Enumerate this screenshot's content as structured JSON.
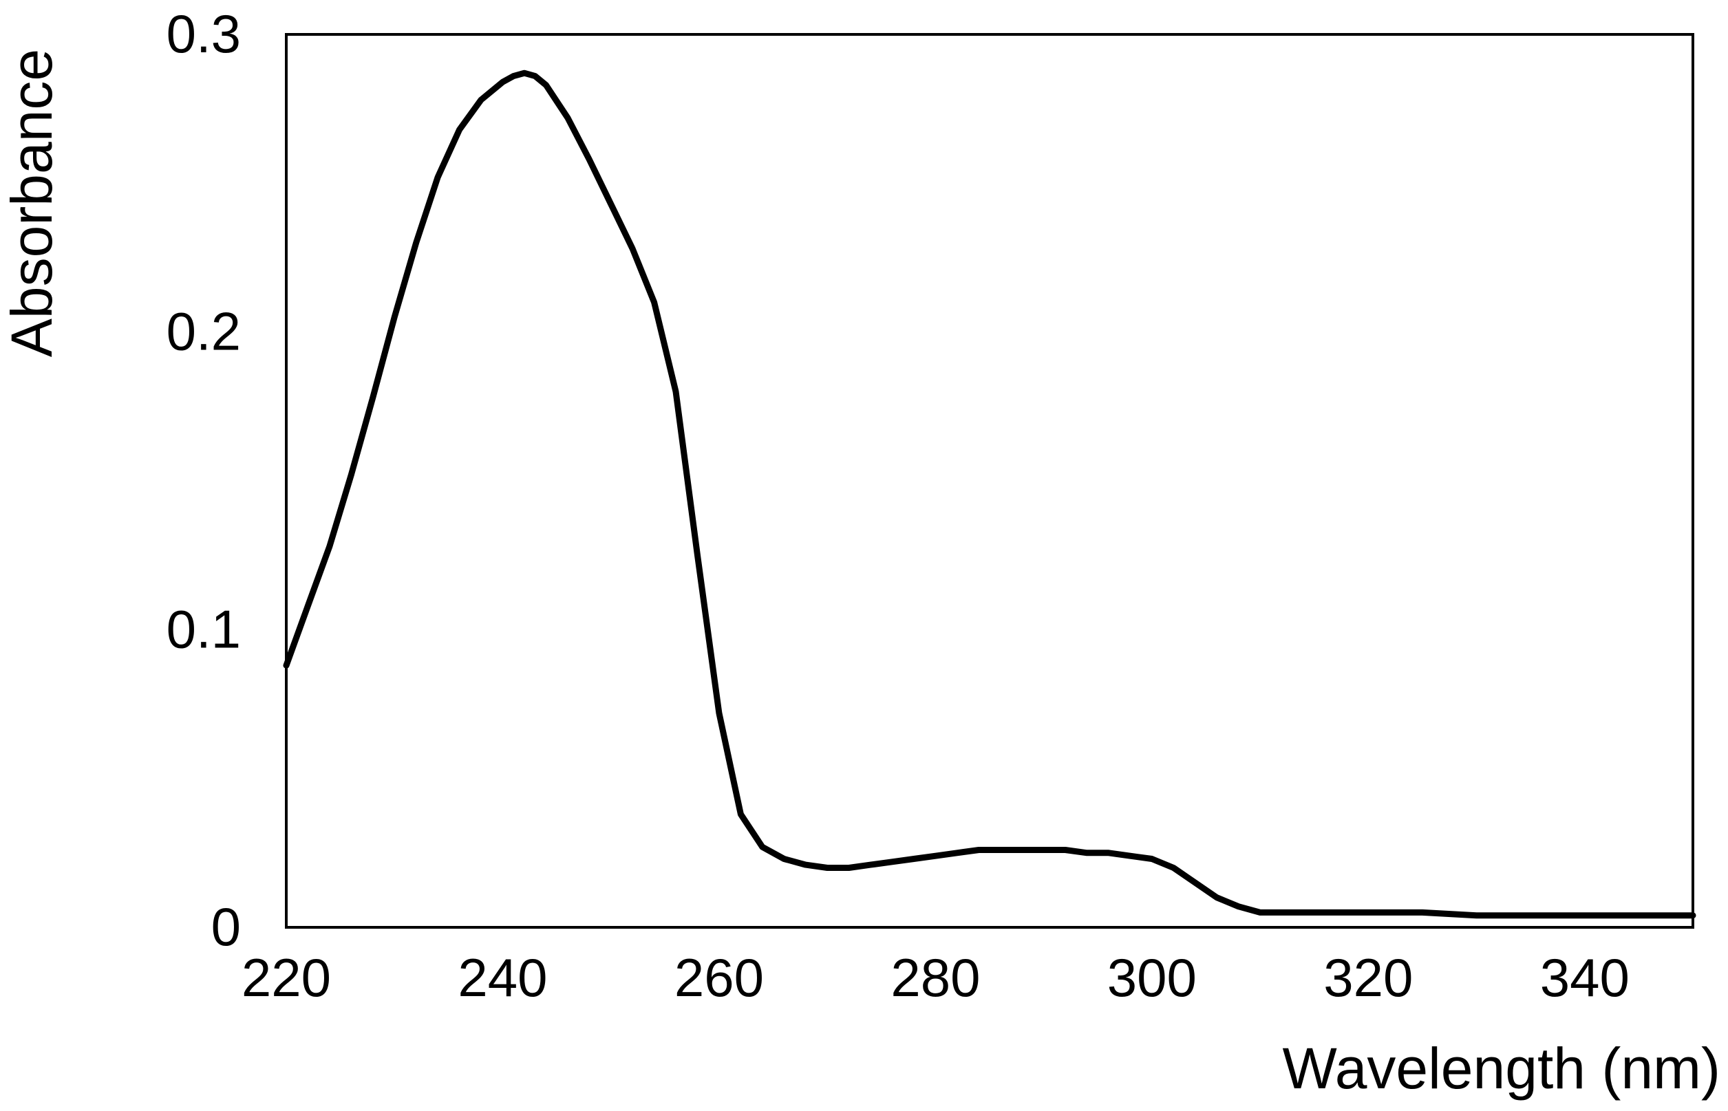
{
  "chart_data": {
    "type": "line",
    "title": "",
    "xlabel": "Wavelength (nm)",
    "ylabel": "Absorbance",
    "xlim": [
      220,
      350
    ],
    "ylim": [
      0,
      0.3
    ],
    "x_ticks": [
      220,
      240,
      260,
      280,
      300,
      320,
      340
    ],
    "x_tick_labels": [
      "220",
      "240",
      "260",
      "280",
      "300",
      "320",
      "340"
    ],
    "y_ticks": [
      0,
      0.1,
      0.2,
      0.3
    ],
    "y_tick_labels": [
      "0",
      "0.1",
      "0.2",
      "0.3"
    ],
    "grid": false,
    "legend": "none",
    "line_color": "#000000",
    "series": [
      {
        "x": [
          220,
          222,
          224,
          226,
          228,
          230,
          232,
          234,
          236,
          238,
          240,
          241,
          242,
          243,
          244,
          246,
          248,
          250,
          252,
          254,
          256,
          258,
          260,
          262,
          264,
          266,
          268,
          270,
          272,
          274,
          276,
          278,
          280,
          282,
          284,
          286,
          288,
          290,
          292,
          294,
          296,
          298,
          300,
          302,
          304,
          306,
          308,
          310,
          312,
          315,
          320,
          325,
          330,
          335,
          340,
          345,
          350
        ],
        "y": [
          0.088,
          0.108,
          0.128,
          0.152,
          0.178,
          0.205,
          0.23,
          0.252,
          0.268,
          0.278,
          0.284,
          0.286,
          0.287,
          0.286,
          0.283,
          0.272,
          0.258,
          0.243,
          0.228,
          0.21,
          0.18,
          0.125,
          0.072,
          0.038,
          0.027,
          0.023,
          0.021,
          0.02,
          0.02,
          0.021,
          0.022,
          0.023,
          0.024,
          0.025,
          0.026,
          0.026,
          0.026,
          0.026,
          0.026,
          0.025,
          0.025,
          0.024,
          0.023,
          0.02,
          0.015,
          0.01,
          0.007,
          0.005,
          0.005,
          0.005,
          0.005,
          0.005,
          0.004,
          0.004,
          0.004,
          0.004,
          0.004
        ]
      }
    ]
  }
}
